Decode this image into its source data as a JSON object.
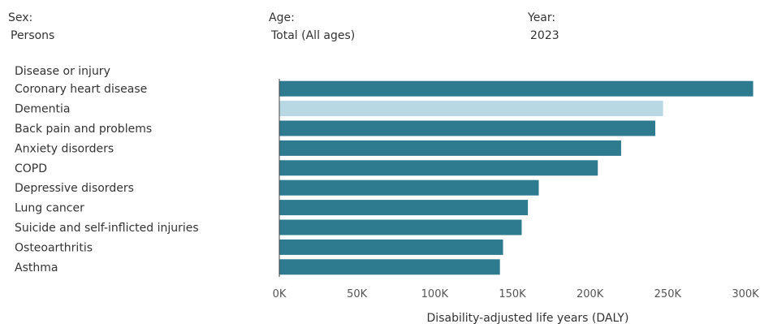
{
  "filters": {
    "sex": {
      "label": "Sex:",
      "value": "Persons"
    },
    "age": {
      "label": "Age:",
      "value": "Total (All ages)"
    },
    "year": {
      "label": "Year:",
      "value": "2023"
    }
  },
  "colors": {
    "bar": "#2e7b90",
    "highlight": "#b8d8e3"
  },
  "chart_data": {
    "type": "bar",
    "orientation": "horizontal",
    "category_header": "Disease or injury",
    "xlabel": "Disability-adjusted life years (DALY)",
    "ylabel": "",
    "xlim": [
      0,
      310000
    ],
    "grid": false,
    "ticks": [
      {
        "value": 0,
        "label": "0K"
      },
      {
        "value": 50000,
        "label": "50K"
      },
      {
        "value": 100000,
        "label": "100K"
      },
      {
        "value": 150000,
        "label": "150K"
      },
      {
        "value": 200000,
        "label": "200K"
      },
      {
        "value": 250000,
        "label": "250K"
      },
      {
        "value": 300000,
        "label": "300K"
      }
    ],
    "categories": [
      "Coronary heart disease",
      "Dementia",
      "Back pain and problems",
      "Anxiety disorders",
      "COPD",
      "Depressive disorders",
      "Lung cancer",
      "Suicide and self-inflicted injuries",
      "Osteoarthritis",
      "Asthma"
    ],
    "values": [
      305000,
      247000,
      242000,
      220000,
      205000,
      167000,
      160000,
      156000,
      144000,
      142000
    ],
    "highlighted": [
      "Dementia"
    ]
  }
}
